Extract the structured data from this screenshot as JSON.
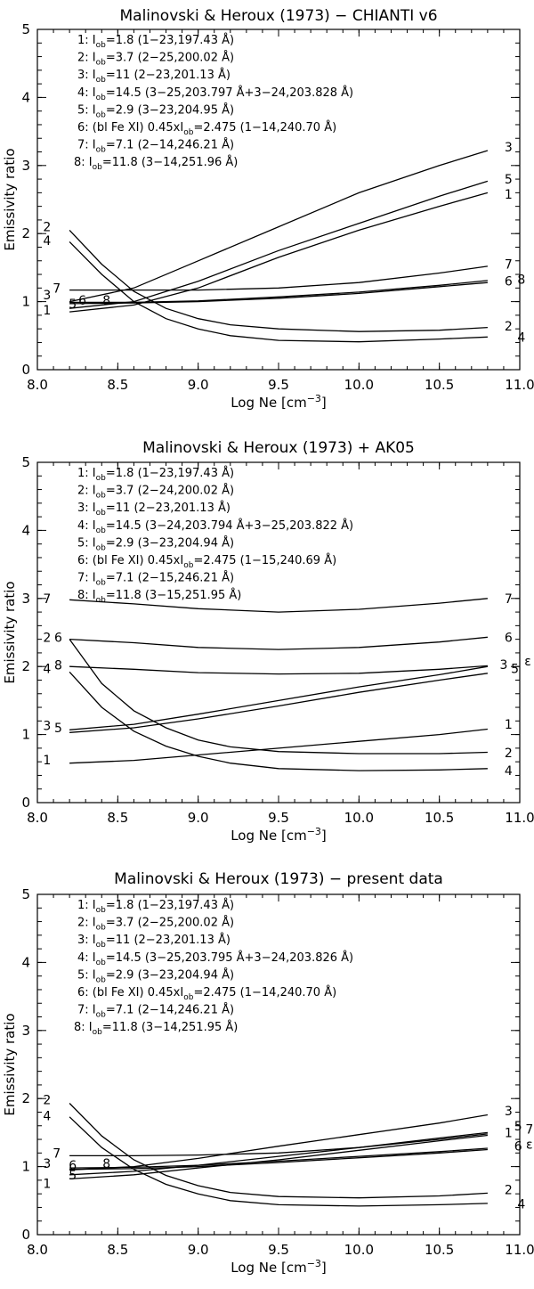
{
  "chart_data": [
    {
      "type": "line",
      "title": "Malinovski & Heroux (1973) − CHIANTI v6",
      "xlabel": "Log Ne [cm",
      "xlabel_sup": "−3",
      "xlabel_close": "]",
      "ylabel": "Emissivity ratio",
      "xlim": [
        8.0,
        11.0
      ],
      "ylim": [
        0,
        5
      ],
      "xticks": [
        "8.0",
        "8.5",
        "9.0",
        "9.5",
        "10.0",
        "10.5",
        "11.0"
      ],
      "yticks": [
        "0",
        "1",
        "2",
        "3",
        "4",
        "5"
      ],
      "legend": [
        {
          "num": "1:",
          "pre": "",
          "val": "=1.8 (1−23,197.43 Å)"
        },
        {
          "num": "2:",
          "pre": "",
          "val": "=3.7 (2−25,200.02 Å)"
        },
        {
          "num": "3:",
          "pre": "",
          "val": "=11 (2−23,201.13 Å)"
        },
        {
          "num": "4:",
          "pre": "",
          "val": "=14.5 (3−25,203.797 Å+3−24,203.828 Å)"
        },
        {
          "num": "5:",
          "pre": "",
          "val": "=2.9 (3−23,204.95 Å)"
        },
        {
          "num": "6:",
          "pre": "(bl Fe XI) 0.45x",
          "val": "=2.475 (1−14,240.70 Å)"
        },
        {
          "num": "7:",
          "pre": "",
          "val": "=7.1 (2−14,246.21 Å)"
        },
        {
          "num": "8:",
          "pre": "",
          "val": "=11.8 (3−14,251.96 Å)"
        }
      ],
      "series": [
        {
          "name": "1",
          "x": [
            8.2,
            8.6,
            9.0,
            9.5,
            10.0,
            10.5,
            10.8
          ],
          "y": [
            0.85,
            0.95,
            1.2,
            1.65,
            2.05,
            2.4,
            2.6
          ]
        },
        {
          "name": "2",
          "x": [
            8.2,
            8.4,
            8.6,
            8.8,
            9.0,
            9.2,
            9.5,
            10.0,
            10.5,
            10.8
          ],
          "y": [
            2.05,
            1.55,
            1.15,
            0.9,
            0.75,
            0.66,
            0.6,
            0.56,
            0.58,
            0.62
          ]
        },
        {
          "name": "3",
          "x": [
            8.2,
            8.6,
            9.0,
            9.5,
            10.0,
            10.5,
            10.8
          ],
          "y": [
            1.0,
            1.2,
            1.6,
            2.1,
            2.6,
            3.0,
            3.22
          ]
        },
        {
          "name": "4",
          "x": [
            8.2,
            8.4,
            8.6,
            8.8,
            9.0,
            9.2,
            9.5,
            10.0,
            10.5,
            10.8
          ],
          "y": [
            1.88,
            1.4,
            1.0,
            0.75,
            0.6,
            0.5,
            0.43,
            0.41,
            0.45,
            0.48
          ]
        },
        {
          "name": "5",
          "x": [
            8.2,
            8.6,
            9.0,
            9.5,
            10.0,
            10.5,
            10.8
          ],
          "y": [
            0.9,
            1.0,
            1.3,
            1.75,
            2.15,
            2.55,
            2.77
          ]
        },
        {
          "name": "6",
          "x": [
            8.2,
            8.6,
            9.0,
            9.5,
            10.0,
            10.5,
            10.8
          ],
          "y": [
            0.97,
            0.98,
            1.0,
            1.05,
            1.12,
            1.22,
            1.28
          ]
        },
        {
          "name": "7",
          "x": [
            8.2,
            8.6,
            9.0,
            9.5,
            10.0,
            10.5,
            10.8
          ],
          "y": [
            1.17,
            1.17,
            1.17,
            1.2,
            1.28,
            1.42,
            1.52
          ]
        },
        {
          "name": "8",
          "x": [
            8.2,
            8.6,
            9.0,
            9.5,
            10.0,
            10.5,
            10.8
          ],
          "y": [
            0.99,
            0.99,
            1.01,
            1.07,
            1.14,
            1.24,
            1.31
          ]
        }
      ],
      "curve_labels": [
        {
          "text": "2",
          "x": 8.06,
          "y": 2.1
        },
        {
          "text": "4",
          "x": 8.06,
          "y": 1.9
        },
        {
          "text": "3",
          "x": 8.06,
          "y": 1.1
        },
        {
          "text": "7",
          "x": 8.12,
          "y": 1.2
        },
        {
          "text": "1",
          "x": 8.06,
          "y": 0.88
        },
        {
          "text": "5",
          "x": 8.22,
          "y": 0.97
        },
        {
          "text": "6",
          "x": 8.28,
          "y": 1.02
        },
        {
          "text": "8",
          "x": 8.43,
          "y": 1.02
        },
        {
          "text": "3",
          "x": 10.93,
          "y": 3.27
        },
        {
          "text": "5",
          "x": 10.93,
          "y": 2.8
        },
        {
          "text": "1",
          "x": 10.93,
          "y": 2.58
        },
        {
          "text": "7",
          "x": 10.93,
          "y": 1.55
        },
        {
          "text": "6",
          "x": 10.93,
          "y": 1.3
        },
        {
          "text": "8",
          "x": 11.01,
          "y": 1.33
        },
        {
          "text": "2",
          "x": 10.93,
          "y": 0.64
        },
        {
          "text": "4",
          "x": 11.01,
          "y": 0.48
        }
      ]
    },
    {
      "type": "line",
      "title": "Malinovski & Heroux (1973) + AK05",
      "xlabel": "Log Ne [cm",
      "xlabel_sup": "−3",
      "xlabel_close": "]",
      "ylabel": "Emissivity ratio",
      "xlim": [
        8.0,
        11.0
      ],
      "ylim": [
        0,
        5
      ],
      "xticks": [
        "8.0",
        "8.5",
        "9.0",
        "9.5",
        "10.0",
        "10.5",
        "11.0"
      ],
      "yticks": [
        "0",
        "1",
        "2",
        "3",
        "4",
        "5"
      ],
      "legend": [
        {
          "num": "1:",
          "pre": "",
          "val": "=1.8 (1−23,197.43 Å)"
        },
        {
          "num": "2:",
          "pre": "",
          "val": "=3.7 (2−24,200.02 Å)"
        },
        {
          "num": "3:",
          "pre": "",
          "val": "=11 (2−23,201.13 Å)"
        },
        {
          "num": "4:",
          "pre": "",
          "val": "=14.5 (3−24,203.794 Å+3−25,203.822 Å)"
        },
        {
          "num": "5:",
          "pre": "",
          "val": "=2.9 (3−23,204.94 Å)"
        },
        {
          "num": "6:",
          "pre": "(bl Fe XI) 0.45x",
          "val": "=2.475 (1−15,240.69 Å)"
        },
        {
          "num": "7:",
          "pre": "",
          "val": "=7.1 (2−15,246.21 Å)"
        },
        {
          "num": "8:",
          "pre": "",
          "val": "=11.8 (3−15,251.95 Å)"
        }
      ],
      "series": [
        {
          "name": "1",
          "x": [
            8.2,
            8.6,
            9.0,
            9.5,
            10.0,
            10.5,
            10.8
          ],
          "y": [
            0.58,
            0.62,
            0.7,
            0.8,
            0.9,
            1.0,
            1.08
          ]
        },
        {
          "name": "2",
          "x": [
            8.2,
            8.4,
            8.6,
            8.8,
            9.0,
            9.2,
            9.5,
            10.0,
            10.5,
            10.8
          ],
          "y": [
            2.4,
            1.75,
            1.35,
            1.1,
            0.92,
            0.82,
            0.75,
            0.72,
            0.72,
            0.74
          ]
        },
        {
          "name": "3",
          "x": [
            8.2,
            8.6,
            9.0,
            9.5,
            10.0,
            10.5,
            10.8
          ],
          "y": [
            1.07,
            1.15,
            1.3,
            1.5,
            1.7,
            1.88,
            2.0
          ]
        },
        {
          "name": "4",
          "x": [
            8.2,
            8.4,
            8.6,
            8.8,
            9.0,
            9.2,
            9.5,
            10.0,
            10.5,
            10.8
          ],
          "y": [
            1.92,
            1.4,
            1.05,
            0.83,
            0.68,
            0.58,
            0.5,
            0.47,
            0.48,
            0.5
          ]
        },
        {
          "name": "5",
          "x": [
            8.2,
            8.6,
            9.0,
            9.5,
            10.0,
            10.5,
            10.8
          ],
          "y": [
            1.03,
            1.1,
            1.23,
            1.42,
            1.62,
            1.8,
            1.9
          ]
        },
        {
          "name": "6",
          "x": [
            8.2,
            8.6,
            9.0,
            9.5,
            10.0,
            10.5,
            10.8
          ],
          "y": [
            2.4,
            2.35,
            2.28,
            2.25,
            2.28,
            2.36,
            2.43
          ]
        },
        {
          "name": "7",
          "x": [
            8.2,
            8.6,
            9.0,
            9.5,
            10.0,
            10.5,
            10.8
          ],
          "y": [
            2.98,
            2.92,
            2.85,
            2.8,
            2.84,
            2.93,
            3.0
          ]
        },
        {
          "name": "8",
          "x": [
            8.2,
            8.6,
            9.0,
            9.5,
            10.0,
            10.5,
            10.8
          ],
          "y": [
            2.0,
            1.96,
            1.91,
            1.89,
            1.9,
            1.96,
            2.01
          ]
        }
      ],
      "curve_labels": [
        {
          "text": "7",
          "x": 8.06,
          "y": 3.0
        },
        {
          "text": "2",
          "x": 8.06,
          "y": 2.43
        },
        {
          "text": "6",
          "x": 8.13,
          "y": 2.43
        },
        {
          "text": "4",
          "x": 8.06,
          "y": 1.97
        },
        {
          "text": "8",
          "x": 8.13,
          "y": 2.02
        },
        {
          "text": "3",
          "x": 8.06,
          "y": 1.13
        },
        {
          "text": "5",
          "x": 8.13,
          "y": 1.1
        },
        {
          "text": "1",
          "x": 8.06,
          "y": 0.63
        },
        {
          "text": "7",
          "x": 10.93,
          "y": 3.0
        },
        {
          "text": "6",
          "x": 10.93,
          "y": 2.43
        },
        {
          "text": "3",
          "x": 10.9,
          "y": 2.03
        },
        {
          "text": "5",
          "x": 10.97,
          "y": 1.97
        },
        {
          "text": "ε",
          "x": 11.05,
          "y": 2.08
        },
        {
          "text": "1",
          "x": 10.93,
          "y": 1.15
        },
        {
          "text": "2",
          "x": 10.93,
          "y": 0.73
        },
        {
          "text": "4",
          "x": 10.93,
          "y": 0.47
        }
      ]
    },
    {
      "type": "line",
      "title": "Malinovski & Heroux (1973) − present data",
      "xlabel": "Log Ne [cm",
      "xlabel_sup": "−3",
      "xlabel_close": "]",
      "ylabel": "Emissivity ratio",
      "xlim": [
        8.0,
        11.0
      ],
      "ylim": [
        0,
        5
      ],
      "xticks": [
        "8.0",
        "8.5",
        "9.0",
        "9.5",
        "10.0",
        "10.5",
        "11.0"
      ],
      "yticks": [
        "0",
        "1",
        "2",
        "3",
        "4",
        "5"
      ],
      "legend": [
        {
          "num": "1:",
          "pre": "",
          "val": "=1.8 (1−23,197.43 Å)"
        },
        {
          "num": "2:",
          "pre": "",
          "val": "=3.7 (2−25,200.02 Å)"
        },
        {
          "num": "3:",
          "pre": "",
          "val": "=11 (2−23,201.13 Å)"
        },
        {
          "num": "4:",
          "pre": "",
          "val": "=14.5 (3−25,203.795 Å+3−24,203.826 Å)"
        },
        {
          "num": "5:",
          "pre": "",
          "val": "=2.9 (3−23,204.94 Å)"
        },
        {
          "num": "6:",
          "pre": "(bl Fe XI) 0.45x",
          "val": "=2.475 (1−14,240.70 Å)"
        },
        {
          "num": "7:",
          "pre": "",
          "val": "=7.1 (2−14,246.21 Å)"
        },
        {
          "num": "8:",
          "pre": "",
          "val": "=11.8 (3−14,251.95 Å)"
        }
      ],
      "series": [
        {
          "name": "1",
          "x": [
            8.2,
            8.6,
            9.0,
            9.5,
            10.0,
            10.5,
            10.8
          ],
          "y": [
            0.82,
            0.88,
            0.98,
            1.1,
            1.24,
            1.38,
            1.46
          ]
        },
        {
          "name": "2",
          "x": [
            8.2,
            8.4,
            8.6,
            8.8,
            9.0,
            9.2,
            9.5,
            10.0,
            10.5,
            10.8
          ],
          "y": [
            1.93,
            1.45,
            1.1,
            0.87,
            0.72,
            0.62,
            0.56,
            0.54,
            0.57,
            0.61
          ]
        },
        {
          "name": "3",
          "x": [
            8.2,
            8.6,
            9.0,
            9.5,
            10.0,
            10.5,
            10.8
          ],
          "y": [
            0.95,
            1.0,
            1.12,
            1.3,
            1.47,
            1.64,
            1.76
          ]
        },
        {
          "name": "4",
          "x": [
            8.2,
            8.4,
            8.6,
            8.8,
            9.0,
            9.2,
            9.5,
            10.0,
            10.5,
            10.8
          ],
          "y": [
            1.73,
            1.28,
            0.96,
            0.74,
            0.6,
            0.5,
            0.44,
            0.42,
            0.44,
            0.46
          ]
        },
        {
          "name": "5",
          "x": [
            8.2,
            8.6,
            9.0,
            9.5,
            10.0,
            10.5,
            10.8
          ],
          "y": [
            0.88,
            0.93,
            1.02,
            1.15,
            1.28,
            1.42,
            1.5
          ]
        },
        {
          "name": "6",
          "x": [
            8.2,
            8.6,
            9.0,
            9.5,
            10.0,
            10.5,
            10.8
          ],
          "y": [
            0.96,
            0.97,
            1.0,
            1.06,
            1.13,
            1.2,
            1.25
          ]
        },
        {
          "name": "7",
          "x": [
            8.2,
            8.6,
            9.0,
            9.5,
            10.0,
            10.5,
            10.8
          ],
          "y": [
            1.16,
            1.16,
            1.17,
            1.2,
            1.28,
            1.4,
            1.48
          ]
        },
        {
          "name": "8",
          "x": [
            8.2,
            8.6,
            9.0,
            9.5,
            10.0,
            10.5,
            10.8
          ],
          "y": [
            0.98,
            0.99,
            1.02,
            1.08,
            1.15,
            1.22,
            1.27
          ]
        }
      ],
      "curve_labels": [
        {
          "text": "2",
          "x": 8.06,
          "y": 1.98
        },
        {
          "text": "4",
          "x": 8.06,
          "y": 1.75
        },
        {
          "text": "7",
          "x": 8.12,
          "y": 1.2
        },
        {
          "text": "3",
          "x": 8.06,
          "y": 1.05
        },
        {
          "text": "6",
          "x": 8.22,
          "y": 1.02
        },
        {
          "text": "8",
          "x": 8.43,
          "y": 1.05
        },
        {
          "text": "5",
          "x": 8.22,
          "y": 0.88
        },
        {
          "text": "1",
          "x": 8.06,
          "y": 0.75
        },
        {
          "text": "3",
          "x": 10.93,
          "y": 1.82
        },
        {
          "text": "5",
          "x": 10.99,
          "y": 1.6
        },
        {
          "text": "7",
          "x": 11.06,
          "y": 1.55
        },
        {
          "text": "1",
          "x": 10.93,
          "y": 1.5
        },
        {
          "text": "6",
          "x": 10.99,
          "y": 1.3
        },
        {
          "text": "ε",
          "x": 11.06,
          "y": 1.33
        },
        {
          "text": "2",
          "x": 10.93,
          "y": 0.66
        },
        {
          "text": "4",
          "x": 11.01,
          "y": 0.45
        }
      ]
    }
  ]
}
